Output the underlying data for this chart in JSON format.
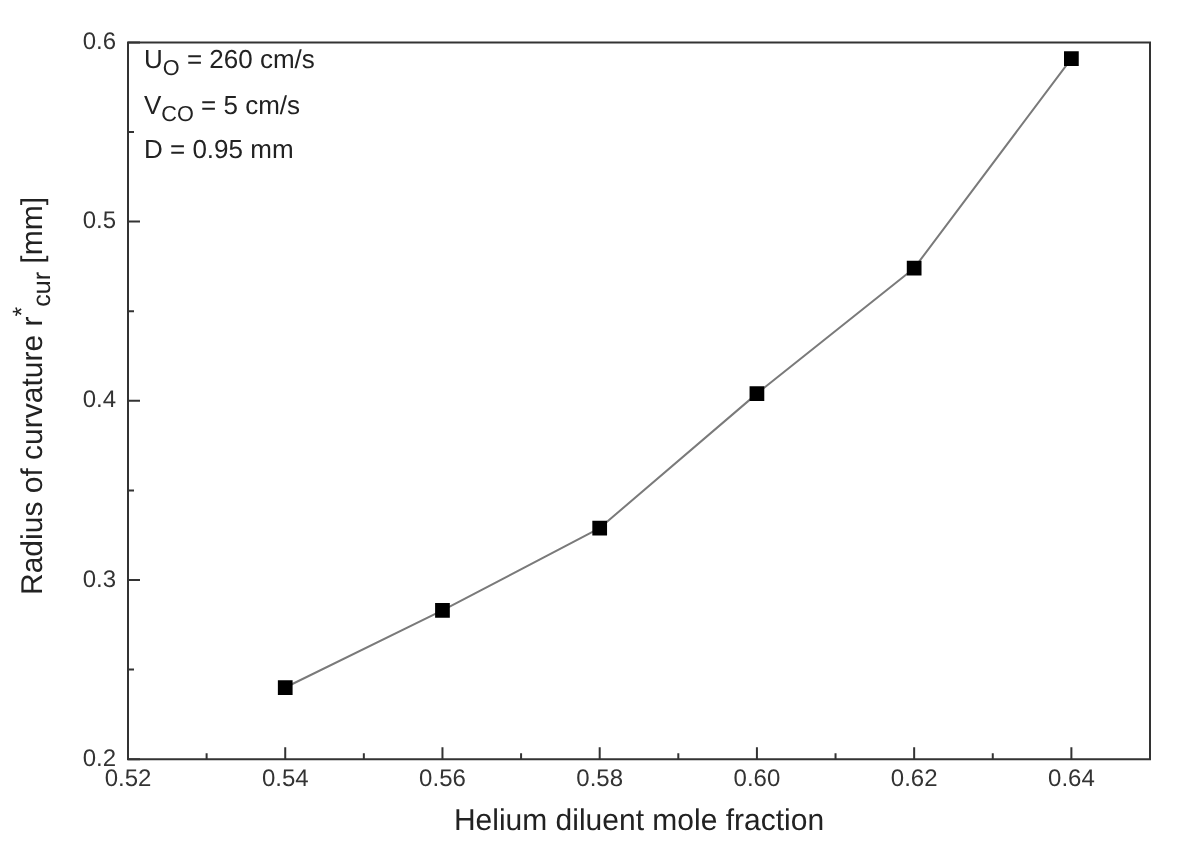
{
  "chart_data": {
    "type": "line",
    "xlabel": "Helium diluent mole fraction",
    "ylabel": "Radius of curvature r$^{*}$$_{cur}$ [mm]",
    "x": [
      0.54,
      0.56,
      0.58,
      0.6,
      0.62,
      0.64
    ],
    "series": [
      {
        "color": "#000000",
        "values": [
          0.24,
          0.283,
          0.329,
          0.404,
          0.474,
          0.591
        ]
      }
    ],
    "marker": "square",
    "line_style": "solid",
    "grid": false,
    "legend": false,
    "xlim": [
      0.52,
      0.65
    ],
    "xticks": [
      {
        "value": 0.52,
        "label": "0.52"
      },
      {
        "value": 0.53,
        "label": null
      },
      {
        "value": 0.54,
        "label": "0.54"
      },
      {
        "value": 0.55,
        "label": null
      },
      {
        "value": 0.56,
        "label": "0.56"
      },
      {
        "value": 0.57,
        "label": null
      },
      {
        "value": 0.58,
        "label": "0.58"
      },
      {
        "value": 0.59,
        "label": null
      },
      {
        "value": 0.6,
        "label": "0.60"
      },
      {
        "value": 0.61,
        "label": null
      },
      {
        "value": 0.62,
        "label": "0.62"
      },
      {
        "value": 0.63,
        "label": null
      },
      {
        "value": 0.64,
        "label": "0.64"
      }
    ],
    "ylim": [
      0.2,
      0.6
    ],
    "yticks": [
      0.2,
      {
        "value": 0.25,
        "label": null
      },
      0.3,
      {
        "value": 0.35,
        "label": null
      },
      0.4,
      {
        "value": 0.45,
        "label": null
      },
      0.5,
      {
        "value": 0.55,
        "label": null
      },
      0.6
    ],
    "annotations": [
      "U$_{O}$ = 260 cm/s",
      "V$_{CO}$ = 5 cm/s",
      "D = 0.95 mm"
    ]
  }
}
